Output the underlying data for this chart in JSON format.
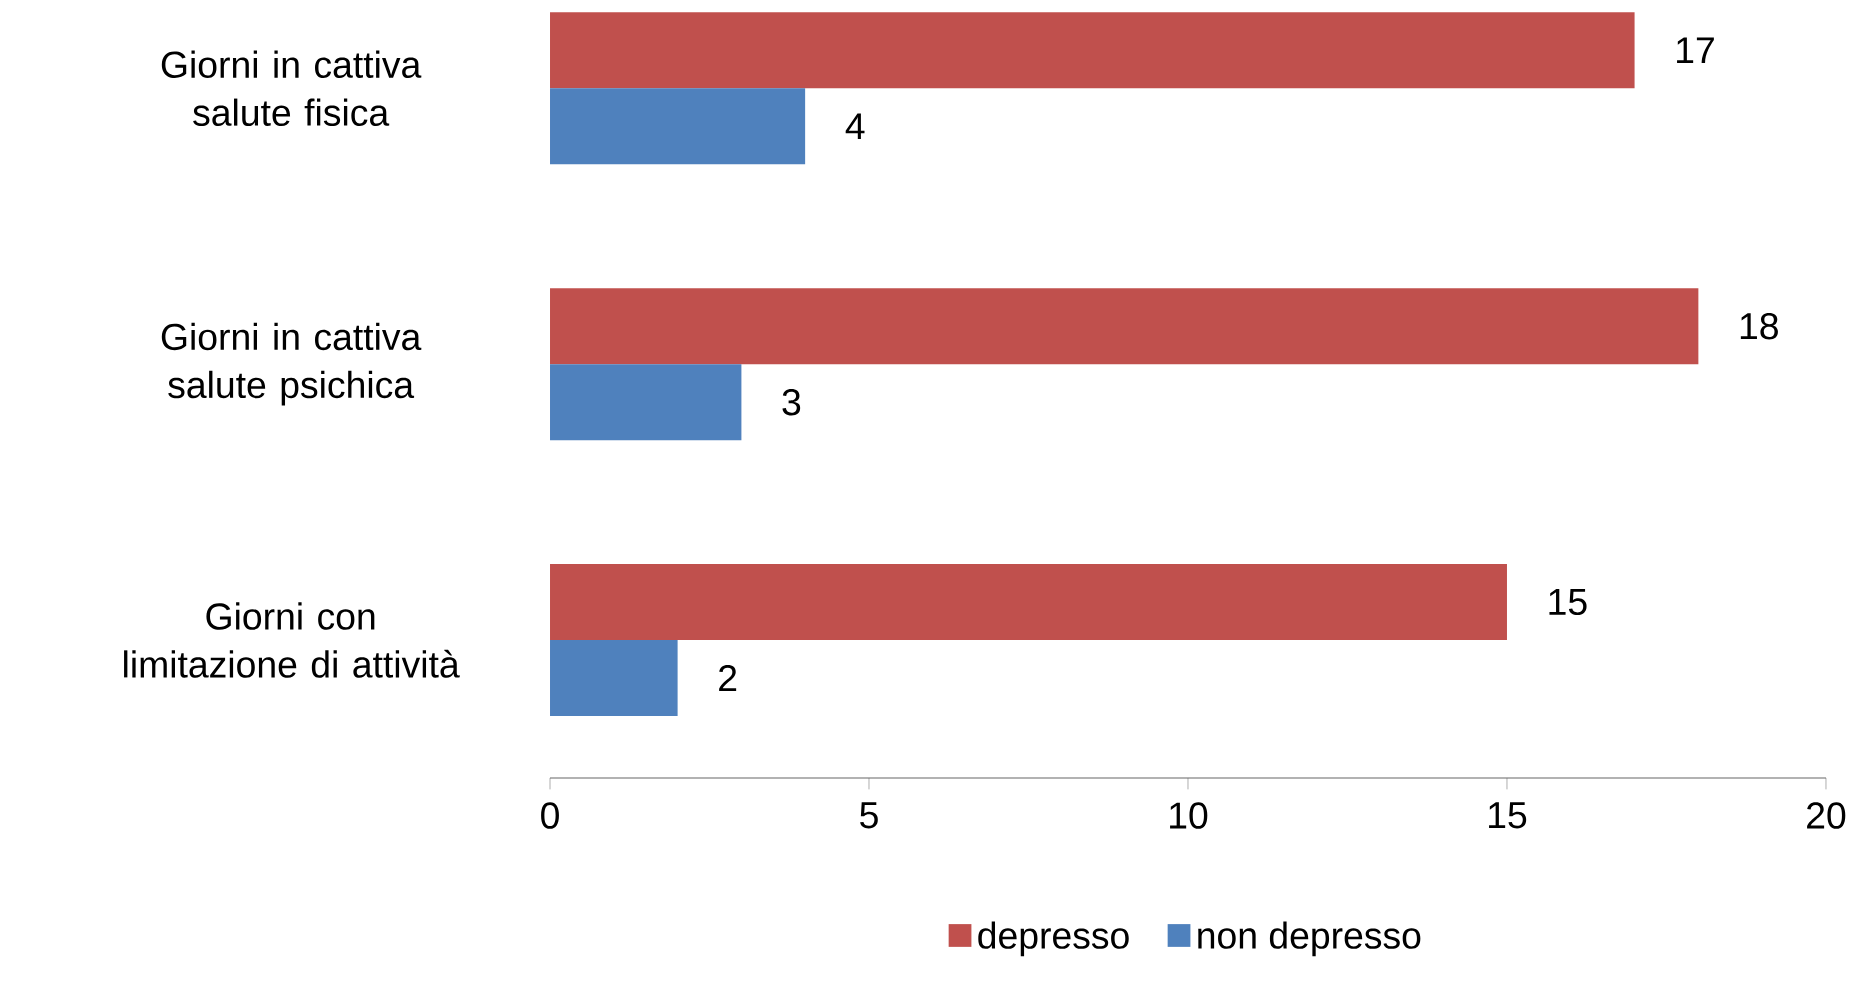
{
  "chart_data": {
    "type": "bar",
    "orientation": "horizontal",
    "categories": [
      "Giorni in cattiva salute fisica",
      "Giorni in cattiva salute psichica",
      "Giorni con limitazione di attività"
    ],
    "series": [
      {
        "name": "depresso",
        "color": "#c0504d",
        "values": [
          17,
          18,
          15
        ]
      },
      {
        "name": "non depresso",
        "color": "#4f81bd",
        "values": [
          4,
          3,
          2
        ]
      }
    ],
    "xlim": [
      0,
      20
    ],
    "xticks": [
      0,
      5,
      10,
      15,
      20
    ],
    "data_labels": true,
    "grid": false,
    "legend": "bottom"
  }
}
